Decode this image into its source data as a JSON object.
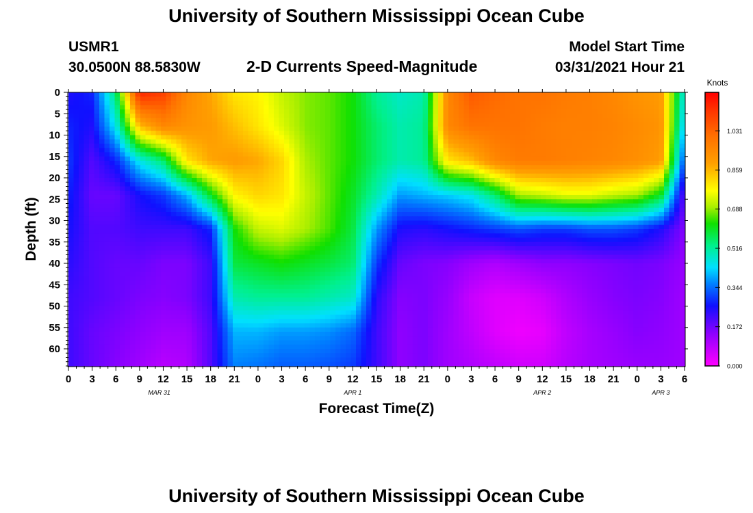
{
  "page": {
    "title_top": "University of Southern Mississippi Ocean Cube",
    "title_bottom": "University of Southern Mississippi Ocean Cube",
    "station_id": "USMR1",
    "station_coords": "30.0500N  88.5830W",
    "plot_title": "2-D Currents Speed-Magnitude",
    "model_start_label": "Model Start Time",
    "model_start_value": "03/31/2021 Hour 21"
  },
  "chart_data": {
    "type": "heatmap",
    "title": "2-D Currents Speed-Magnitude",
    "xlabel": "Forecast Time(Z)",
    "ylabel": "Depth (ft)",
    "colorbar_label": "Knots",
    "colorbar_ticks": [
      "1.031",
      "0.859",
      "0.688",
      "0.516",
      "0.344",
      "0.172",
      "0.000"
    ],
    "colorbar_range": [
      0,
      1.2
    ],
    "x_tick_labels": [
      "0",
      "3",
      "6",
      "9",
      "12",
      "15",
      "18",
      "21",
      "0",
      "3",
      "6",
      "9",
      "12",
      "15",
      "18",
      "21",
      "0",
      "3",
      "6",
      "9",
      "12",
      "15",
      "18",
      "21",
      "0",
      "3",
      "6"
    ],
    "x_tick_hours": [
      0,
      3,
      6,
      9,
      12,
      15,
      18,
      21,
      24,
      27,
      30,
      33,
      36,
      39,
      42,
      45,
      48,
      51,
      54,
      57,
      60,
      63,
      66,
      69,
      72,
      75,
      78
    ],
    "date_labels": [
      {
        "label": "MAR 31",
        "hour": 11.5
      },
      {
        "label": "APR 1",
        "hour": 36
      },
      {
        "label": "APR 2",
        "hour": 60
      },
      {
        "label": "APR 3",
        "hour": 75
      }
    ],
    "y_tick_labels": [
      "0",
      "5",
      "10",
      "15",
      "20",
      "25",
      "30",
      "35",
      "40",
      "45",
      "50",
      "55",
      "60"
    ],
    "y_tick_values": [
      0,
      5,
      10,
      15,
      20,
      25,
      30,
      35,
      40,
      45,
      50,
      55,
      60
    ],
    "xlim": [
      0,
      78
    ],
    "ylim": [
      0,
      64
    ],
    "grid_hours": [
      0,
      3,
      6,
      9,
      12,
      15,
      18,
      21,
      24,
      27,
      30,
      33,
      36,
      39,
      42,
      45,
      48,
      51,
      54,
      57,
      60,
      63,
      66,
      69,
      72,
      75,
      78
    ],
    "grid_depths": [
      0,
      8,
      16,
      24,
      32,
      40,
      48,
      56,
      64
    ],
    "speed_grid_knots": [
      [
        0.25,
        0.28,
        0.55,
        1.15,
        1.1,
        0.95,
        0.88,
        0.8,
        0.78,
        0.72,
        0.68,
        0.66,
        0.62,
        0.52,
        0.48,
        0.5,
        0.95,
        1.05,
        1.02,
        1.0,
        1.0,
        0.98,
        0.97,
        0.95,
        0.92,
        0.9,
        0.45
      ],
      [
        0.28,
        0.25,
        0.45,
        0.85,
        0.95,
        0.92,
        0.9,
        0.85,
        0.8,
        0.74,
        0.68,
        0.66,
        0.62,
        0.55,
        0.5,
        0.52,
        0.95,
        1.0,
        1.0,
        1.0,
        0.98,
        0.97,
        0.97,
        0.96,
        0.94,
        0.92,
        0.4
      ],
      [
        0.3,
        0.2,
        0.28,
        0.45,
        0.55,
        0.8,
        0.88,
        0.9,
        0.88,
        0.82,
        0.7,
        0.66,
        0.62,
        0.55,
        0.5,
        0.52,
        0.8,
        0.85,
        0.95,
        0.98,
        0.98,
        0.97,
        0.96,
        0.95,
        0.93,
        0.9,
        0.3
      ],
      [
        0.28,
        0.18,
        0.18,
        0.26,
        0.3,
        0.4,
        0.6,
        0.78,
        0.82,
        0.8,
        0.72,
        0.66,
        0.6,
        0.5,
        0.38,
        0.4,
        0.42,
        0.45,
        0.55,
        0.7,
        0.72,
        0.75,
        0.75,
        0.72,
        0.7,
        0.6,
        0.18
      ],
      [
        0.26,
        0.2,
        0.2,
        0.22,
        0.22,
        0.22,
        0.28,
        0.62,
        0.72,
        0.74,
        0.7,
        0.65,
        0.58,
        0.38,
        0.25,
        0.24,
        0.26,
        0.28,
        0.3,
        0.32,
        0.3,
        0.3,
        0.32,
        0.32,
        0.3,
        0.25,
        0.15
      ],
      [
        0.24,
        0.2,
        0.18,
        0.18,
        0.16,
        0.16,
        0.22,
        0.58,
        0.6,
        0.62,
        0.6,
        0.58,
        0.55,
        0.3,
        0.18,
        0.16,
        0.15,
        0.12,
        0.1,
        0.12,
        0.14,
        0.14,
        0.15,
        0.16,
        0.17,
        0.16,
        0.13
      ],
      [
        0.22,
        0.2,
        0.18,
        0.16,
        0.15,
        0.16,
        0.22,
        0.5,
        0.52,
        0.52,
        0.52,
        0.5,
        0.48,
        0.24,
        0.15,
        0.16,
        0.13,
        0.07,
        0.04,
        0.04,
        0.06,
        0.1,
        0.13,
        0.15,
        0.16,
        0.15,
        0.12
      ],
      [
        0.22,
        0.18,
        0.16,
        0.14,
        0.12,
        0.12,
        0.2,
        0.4,
        0.4,
        0.38,
        0.38,
        0.37,
        0.34,
        0.22,
        0.14,
        0.16,
        0.12,
        0.08,
        0.04,
        0.02,
        0.03,
        0.08,
        0.11,
        0.13,
        0.15,
        0.14,
        0.12
      ],
      [
        0.22,
        0.18,
        0.15,
        0.12,
        0.09,
        0.1,
        0.2,
        0.36,
        0.35,
        0.33,
        0.33,
        0.32,
        0.3,
        0.22,
        0.14,
        0.16,
        0.12,
        0.1,
        0.08,
        0.06,
        0.06,
        0.09,
        0.11,
        0.12,
        0.13,
        0.13,
        0.12
      ]
    ]
  }
}
